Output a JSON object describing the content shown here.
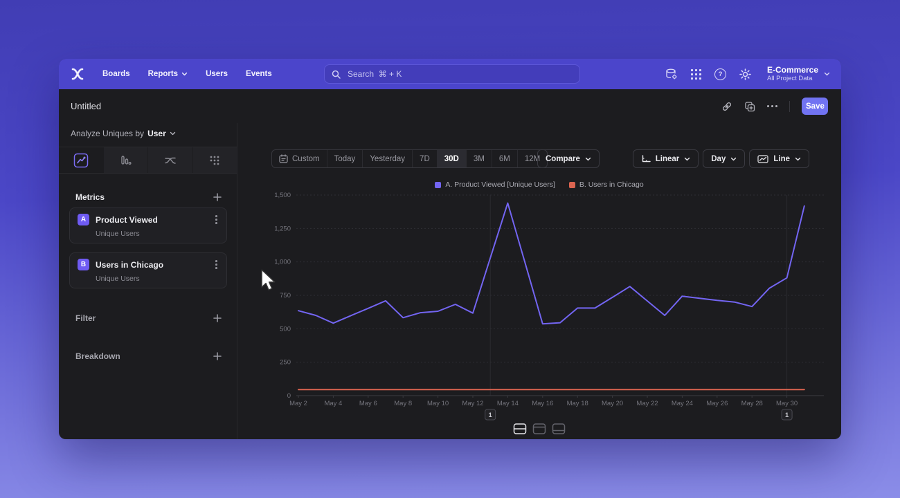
{
  "nav": {
    "brand_icon": "mixpanel-logo",
    "items": [
      {
        "label": "Boards"
      },
      {
        "label": "Reports"
      },
      {
        "label": "Users"
      },
      {
        "label": "Events"
      }
    ],
    "search_placeholder": "Search  ⌘ + K",
    "right_icons": [
      "data-management-icon",
      "apps-grid-icon",
      "help-icon",
      "settings-gear-icon"
    ],
    "help_glyph": "?",
    "project_name": "E-Commerce",
    "project_subtitle": "All Project Data"
  },
  "titlebar": {
    "title": "Untitled",
    "actions": [
      "link-icon",
      "duplicate-icon",
      "more-options-icon"
    ],
    "save_label": "Save"
  },
  "sidebar": {
    "analyze_prefix": "Analyze Uniques by",
    "analyze_value": "User",
    "chart_type_tabs": [
      "insights-line-tab",
      "bars-tab",
      "flows-tab",
      "retention-dots-tab"
    ],
    "selected_tab": "insights-line-tab",
    "metrics_header": "Metrics",
    "metrics": [
      {
        "badge": "A",
        "title": "Product Viewed",
        "subtitle": "Unique Users"
      },
      {
        "badge": "B",
        "title": "Users in Chicago",
        "subtitle": "Unique Users"
      }
    ],
    "filter_label": "Filter",
    "breakdown_label": "Breakdown"
  },
  "toolbar": {
    "date_ranges": [
      "Custom",
      "Today",
      "Yesterday",
      "7D",
      "30D",
      "3M",
      "6M",
      "12M"
    ],
    "selected_range": "30D",
    "compare_label": "Compare",
    "scale_label": "Linear",
    "granularity_label": "Day",
    "chart_style_label": "Line"
  },
  "legend": [
    {
      "label": "A. Product Viewed [Unique Users]",
      "color": "#7365F2"
    },
    {
      "label": "B. Users in Chicago",
      "color": "#DB6450"
    }
  ],
  "chart_data": {
    "type": "line",
    "x": [
      "May 2",
      "May 3",
      "May 4",
      "May 5",
      "May 6",
      "May 7",
      "May 8",
      "May 9",
      "May 10",
      "May 11",
      "May 12",
      "May 13",
      "May 14",
      "May 15",
      "May 16",
      "May 17",
      "May 18",
      "May 19",
      "May 20",
      "May 21",
      "May 22",
      "May 23",
      "May 24",
      "May 25",
      "May 26",
      "May 27",
      "May 28",
      "May 29",
      "May 30",
      "May 31"
    ],
    "series": [
      {
        "name": "A. Product Viewed [Unique Users]",
        "color": "#7365F2",
        "values": [
          635,
          600,
          542,
          598,
          653,
          709,
          583,
          620,
          631,
          683,
          617,
          1030,
          1440,
          990,
          537,
          545,
          655,
          655,
          735,
          816,
          708,
          600,
          744,
          728,
          712,
          700,
          666,
          804,
          881,
          1418
        ]
      },
      {
        "name": "B. Users in Chicago",
        "color": "#DB6450",
        "values": [
          45,
          45,
          45,
          45,
          45,
          45,
          45,
          45,
          45,
          45,
          45,
          45,
          45,
          45,
          45,
          45,
          45,
          45,
          45,
          45,
          45,
          45,
          45,
          45,
          45,
          45,
          45,
          45,
          45,
          45
        ]
      }
    ],
    "ylim": [
      0,
      1500
    ],
    "yticks": [
      0,
      250,
      500,
      750,
      1000,
      1250,
      1500
    ],
    "ytick_labels": [
      "0",
      "250",
      "500",
      "750",
      "1,000",
      "1,250",
      "1,500"
    ],
    "xtick_indices": [
      0,
      2,
      4,
      6,
      8,
      10,
      12,
      14,
      16,
      18,
      20,
      22,
      24,
      26,
      28
    ],
    "grid": "horizontal-dashed",
    "legend_position": "top-center",
    "annotations": [
      {
        "label": "1",
        "x_index": 11
      },
      {
        "label": "1",
        "x_index": 28
      }
    ]
  },
  "colors": {
    "nav_purple": "#4B45CB",
    "save_button": "#7173F2",
    "accent_purple": "#7365F2",
    "series_a": "#7365F2",
    "series_b": "#DB6450",
    "app_background": "#1C1C1F"
  }
}
